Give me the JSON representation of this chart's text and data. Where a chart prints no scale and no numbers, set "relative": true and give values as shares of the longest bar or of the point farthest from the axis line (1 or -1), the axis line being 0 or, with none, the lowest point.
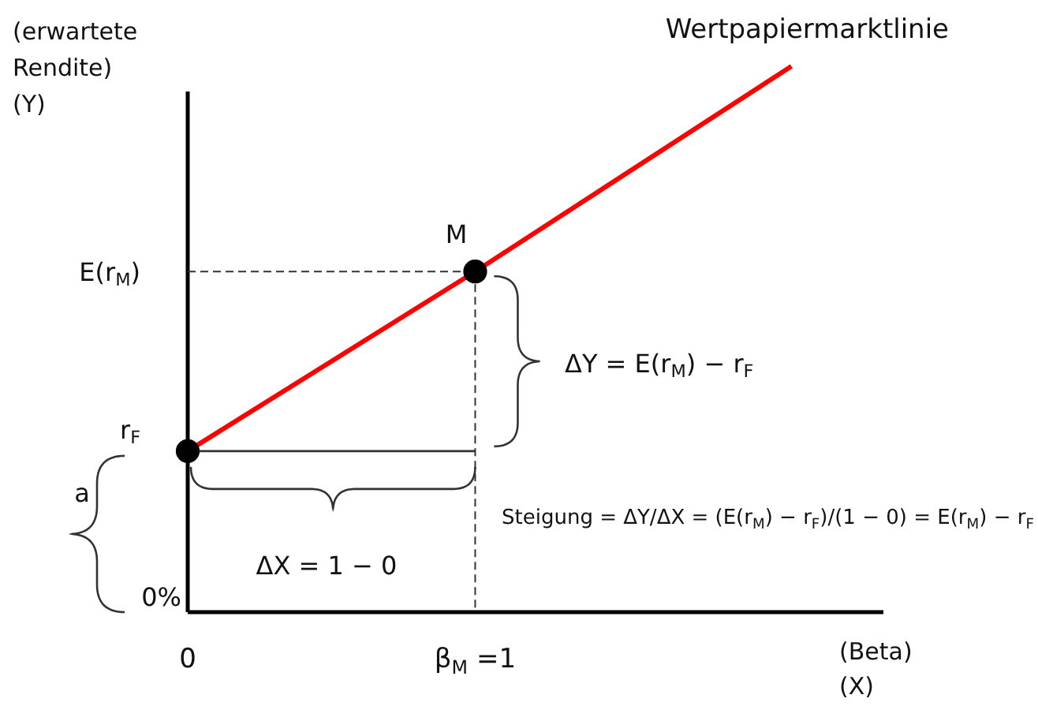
{
  "chart_data": {
    "type": "line",
    "relative": true,
    "xlabel": "(Beta)\n(X)",
    "ylabel": "(erwartete\nRendite)\n(Y)",
    "xlim": [
      0,
      2.42
    ],
    "xticks": [
      {
        "value": 0,
        "label": "0"
      },
      {
        "value": 1,
        "label": "β$_{M}$ =1"
      }
    ],
    "legend": false,
    "grid": false,
    "series": [
      {
        "name": "Wertpapiermarktlinie",
        "color": "#ff0000",
        "x": [
          0,
          1,
          2.1
        ],
        "values": [
          0.295,
          0.624,
          1
        ]
      },
      {
        "color": "#333333",
        "x": [
          0,
          1
        ],
        "values": [
          0.295,
          0.295
        ]
      },
      {
        "type": "scatter",
        "color": "#000000",
        "marker": "circle",
        "x": [
          0,
          1
        ],
        "values": [
          0.295,
          0.624
        ]
      }
    ],
    "annotations": [
      "M",
      "E(r$_{M}$)",
      "r$_{F}$",
      "0%",
      "a",
      "ΔY = E(r$_{M}$) − r$_{F}$",
      "ΔX = 1 − 0",
      "Steigung = ΔY/ΔX = (E(r$_{M}$) − r$_{F}$)/(1 − 0) = E(r$_{M}$) − r$_{F}$"
    ]
  }
}
